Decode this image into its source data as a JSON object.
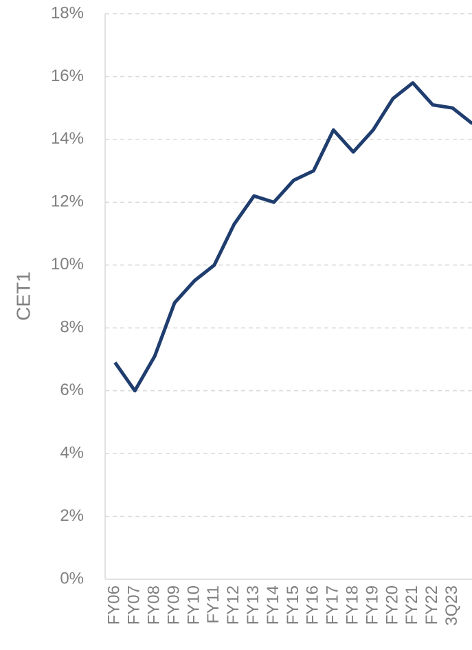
{
  "chart_data": {
    "type": "line",
    "y_label": "CET1",
    "categories": [
      "FY06",
      "FY07",
      "FY08",
      "FY09",
      "FY10",
      "FY11",
      "FY12",
      "FY13",
      "FY14",
      "FY15",
      "FY16",
      "FY17",
      "FY18",
      "FY19",
      "FY20",
      "FY21",
      "FY22",
      "3Q23",
      null
    ],
    "series": [
      {
        "name": "CET1",
        "color": "#1f3d6e",
        "values": [
          6.9,
          6.0,
          7.1,
          8.8,
          9.5,
          10.0,
          11.3,
          12.2,
          12.0,
          12.7,
          13.0,
          14.3,
          13.6,
          14.3,
          15.3,
          15.8,
          15.1,
          15.0,
          14.5
        ]
      }
    ],
    "ylim": [
      0,
      18
    ],
    "yticks": [
      {
        "value": 0,
        "label": "0%"
      },
      {
        "value": 2,
        "label": "2%"
      },
      {
        "value": 4,
        "label": "4%"
      },
      {
        "value": 6,
        "label": "6%"
      },
      {
        "value": 8,
        "label": "8%"
      },
      {
        "value": 10,
        "label": "10%"
      },
      {
        "value": 12,
        "label": "12%"
      },
      {
        "value": 14,
        "label": "14%"
      },
      {
        "value": 16,
        "label": "16%"
      },
      {
        "value": 18,
        "label": "18%"
      }
    ],
    "grid": true
  }
}
